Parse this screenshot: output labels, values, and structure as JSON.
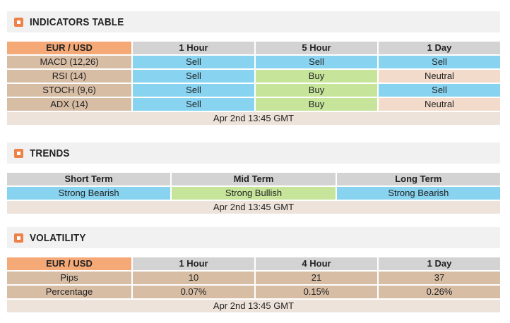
{
  "colors": {
    "sell_blue": "#87d3f0",
    "buy_green": "#c6e59a",
    "neutral_peach": "#f2dbca",
    "data_tan": "#d8bda5",
    "header_gray": "#d3d3d3",
    "pair_orange": "#f5a977",
    "accent_orange": "#ee8147",
    "footer_pink": "#eee3da",
    "bar_gray": "#f1f1f1"
  },
  "sections": [
    {
      "title": "INDICATORS TABLE",
      "header": [
        "EUR / USD",
        "1 Hour",
        "5 Hour",
        "1 Day"
      ],
      "rows": [
        {
          "label": "MACD (12,26)",
          "cells": [
            {
              "text": "Sell",
              "color": "#87d3f0"
            },
            {
              "text": "Sell",
              "color": "#87d3f0"
            },
            {
              "text": "Sell",
              "color": "#87d3f0"
            }
          ]
        },
        {
          "label": "RSI (14)",
          "cells": [
            {
              "text": "Sell",
              "color": "#87d3f0"
            },
            {
              "text": "Buy",
              "color": "#c6e59a"
            },
            {
              "text": "Neutral",
              "color": "#f2dbca"
            }
          ]
        },
        {
          "label": "STOCH (9,6)",
          "cells": [
            {
              "text": "Sell",
              "color": "#87d3f0"
            },
            {
              "text": "Buy",
              "color": "#c6e59a"
            },
            {
              "text": "Sell",
              "color": "#87d3f0"
            }
          ]
        },
        {
          "label": "ADX (14)",
          "cells": [
            {
              "text": "Sell",
              "color": "#87d3f0"
            },
            {
              "text": "Buy",
              "color": "#c6e59a"
            },
            {
              "text": "Neutral",
              "color": "#f2dbca"
            }
          ]
        }
      ],
      "footer": "Apr 2nd 13:45 GMT"
    },
    {
      "title": "TRENDS",
      "header": [
        "Short Term",
        "Mid Term",
        "Long Term"
      ],
      "rows": [
        {
          "cells": [
            {
              "text": "Strong Bearish",
              "color": "#87d3f0"
            },
            {
              "text": "Strong Bullish",
              "color": "#c6e59a"
            },
            {
              "text": "Strong Bearish",
              "color": "#87d3f0"
            }
          ]
        }
      ],
      "footer": "Apr 2nd 13:45 GMT"
    },
    {
      "title": "VOLATILITY",
      "header": [
        "EUR / USD",
        "1 Hour",
        "4 Hour",
        "1 Day"
      ],
      "rows": [
        {
          "label": "Pips",
          "cells": [
            {
              "text": "10",
              "color": "#d8bda5"
            },
            {
              "text": "21",
              "color": "#d8bda5"
            },
            {
              "text": "37",
              "color": "#d8bda5"
            }
          ]
        },
        {
          "label": "Percentage",
          "cells": [
            {
              "text": "0.07%",
              "color": "#d8bda5"
            },
            {
              "text": "0.15%",
              "color": "#d8bda5"
            },
            {
              "text": "0.26%",
              "color": "#d8bda5"
            }
          ]
        }
      ],
      "footer": "Apr 2nd 13:45 GMT"
    }
  ]
}
